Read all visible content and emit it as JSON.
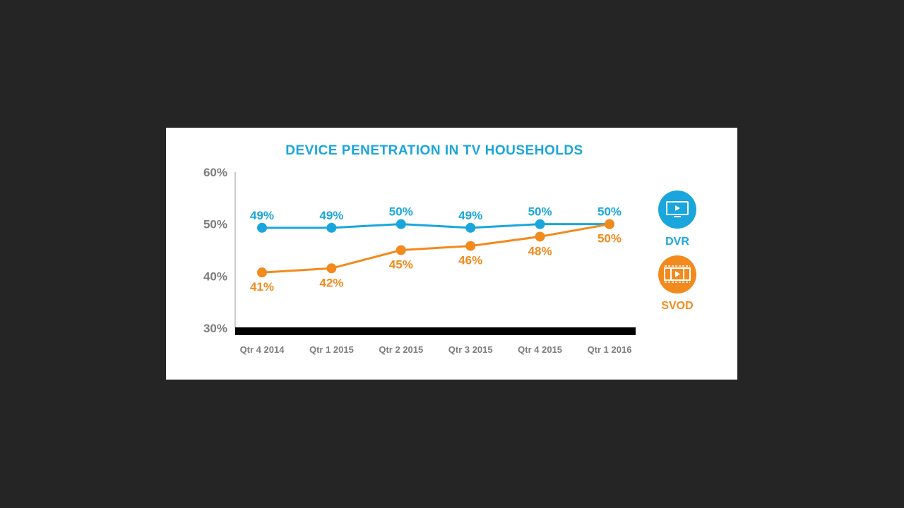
{
  "chart_data": {
    "type": "line",
    "title": "DEVICE PENETRATION IN TV HOUSEHOLDS",
    "categories": [
      "Qtr 4 2014",
      "Qtr 1 2015",
      "Qtr 2 2015",
      "Qtr 3 2015",
      "Qtr 4 2015",
      "Qtr 1 2016"
    ],
    "y_ticks": [
      "60%",
      "50%",
      "40%",
      "30%"
    ],
    "ylim": [
      30,
      60
    ],
    "series": [
      {
        "name": "DVR",
        "color": "#1aa6dc",
        "icon": "tv-icon",
        "values": [
          49.3,
          49.3,
          50.0,
          49.3,
          50.0,
          50.0
        ],
        "labels": [
          "49%",
          "49%",
          "50%",
          "49%",
          "50%",
          "50%"
        ]
      },
      {
        "name": "SVOD",
        "color": "#f28a1e",
        "icon": "film-strip-icon",
        "values": [
          40.7,
          41.5,
          45.0,
          45.8,
          47.6,
          50.0
        ],
        "labels": [
          "41%",
          "42%",
          "45%",
          "46%",
          "48%",
          "50%"
        ]
      }
    ],
    "grid": false,
    "legend_position": "right"
  }
}
